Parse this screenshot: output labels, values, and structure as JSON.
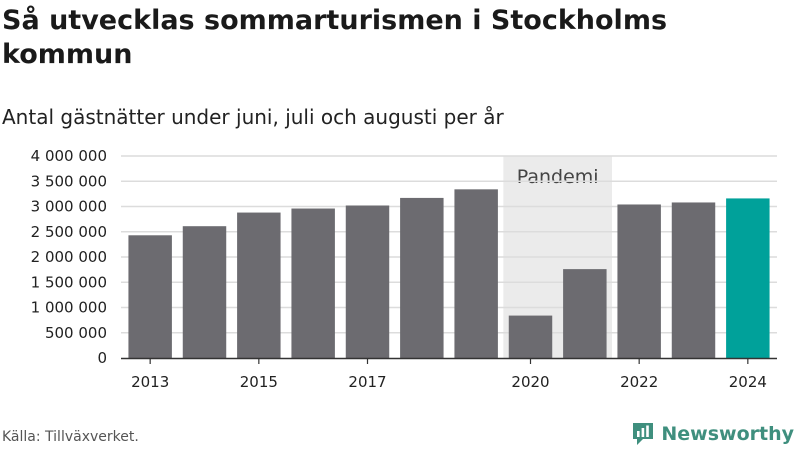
{
  "title": "Så utvecklas sommarturismen i Stockholms kommun",
  "subtitle": "Antal gästnätter under juni, juli och augusti per år",
  "source": "Källa: Tillväxverket.",
  "brand": {
    "name": "Newsworthy",
    "logo_icon": "newsworthy-logo-icon",
    "color": "#3f8f7e"
  },
  "chart_data": {
    "type": "bar",
    "categories": [
      "2013",
      "2014",
      "2015",
      "2016",
      "2017",
      "2018",
      "2019",
      "2020",
      "2021",
      "2022",
      "2023",
      "2024"
    ],
    "values": [
      2430000,
      2610000,
      2880000,
      2960000,
      3020000,
      3170000,
      3340000,
      840000,
      1760000,
      3040000,
      3080000,
      3160000
    ],
    "x_tick_labels": [
      "2013",
      "",
      "2015",
      "",
      "2017",
      "",
      "",
      "2020",
      "",
      "2022",
      "",
      "2024"
    ],
    "y_ticks": [
      {
        "value": 0,
        "label": "0"
      },
      {
        "value": 500000,
        "label": "500 000"
      },
      {
        "value": 1000000,
        "label": "1 000 000"
      },
      {
        "value": 1500000,
        "label": "1 500 000"
      },
      {
        "value": 2000000,
        "label": "2 000 000"
      },
      {
        "value": 2500000,
        "label": "2 500 000"
      },
      {
        "value": 3000000,
        "label": "3 000 000"
      },
      {
        "value": 3500000,
        "label": "3 500 000"
      },
      {
        "value": 4000000,
        "label": "4 000 000"
      }
    ],
    "ylim": [
      0,
      4000000
    ],
    "grid": true,
    "highlight_band": {
      "label": "Pandemi",
      "from": "2020",
      "to": "2021",
      "color": "#ebebeb"
    },
    "colors": {
      "bar": "#6c6b70",
      "highlight_bar": "#00a19a",
      "highlight_category": "2024"
    }
  }
}
